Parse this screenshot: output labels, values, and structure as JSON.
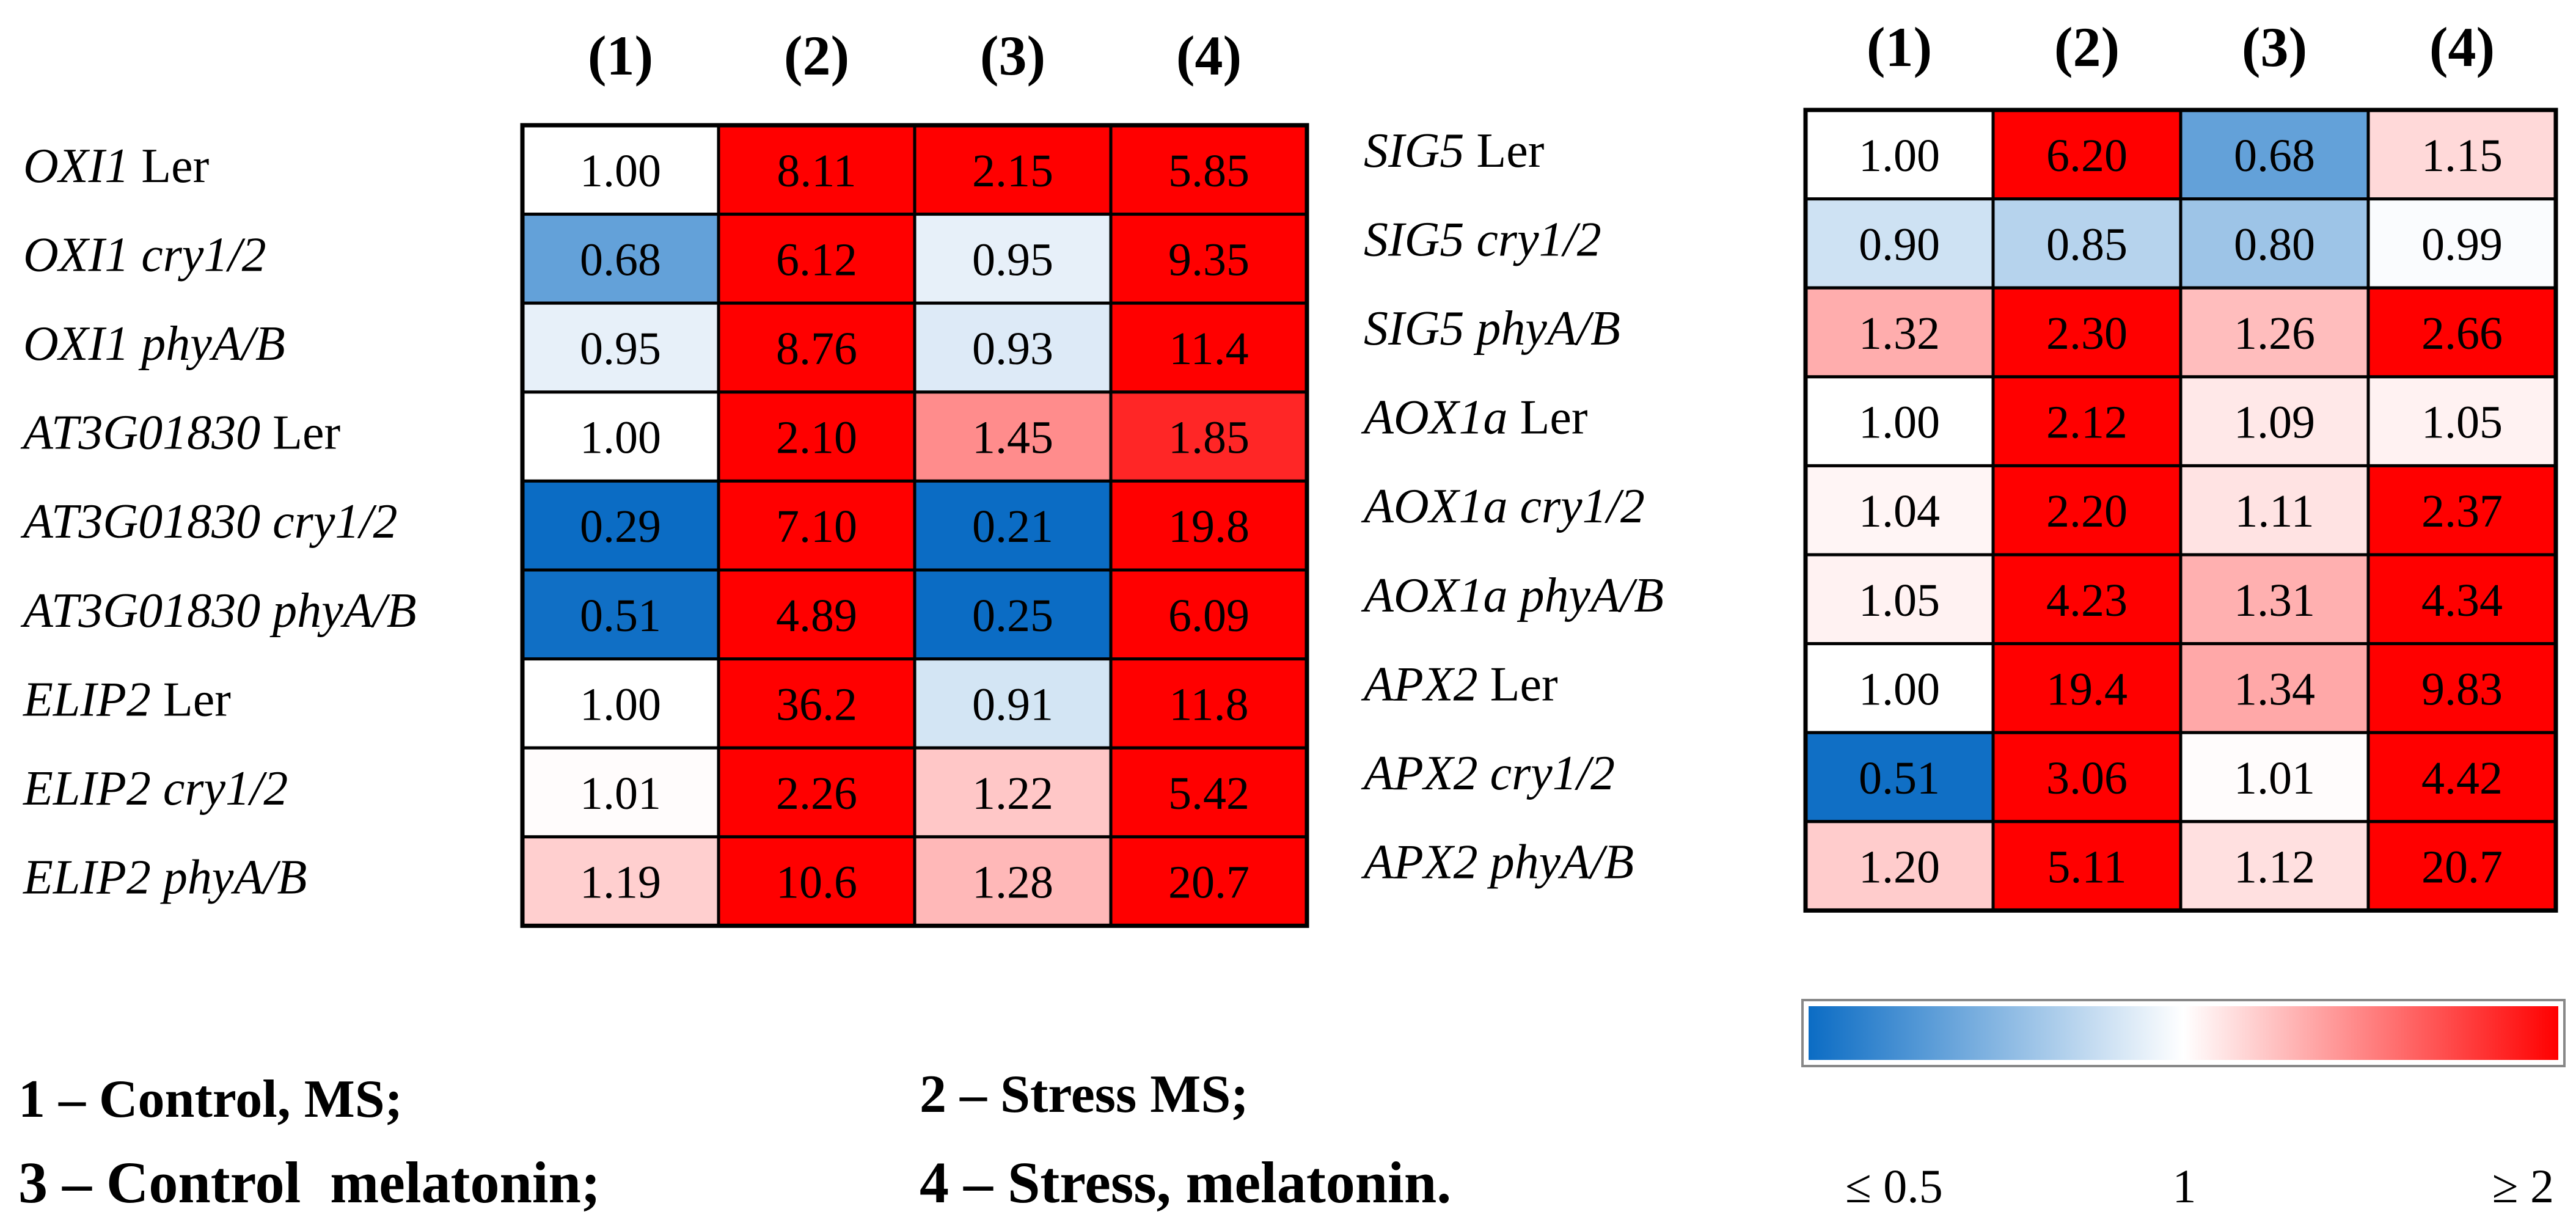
{
  "chart_data": [
    {
      "type": "heatmap",
      "name": "left-heatmap",
      "columns": [
        "(1)",
        "(2)",
        "(3)",
        "(4)"
      ],
      "rows": [
        {
          "gene": "OXI1",
          "line": "Ler",
          "values": [
            "1.00",
            "8.11",
            "2.15",
            "5.85"
          ]
        },
        {
          "gene": "OXI1",
          "line": "cry1/2",
          "values": [
            "0.68",
            "6.12",
            "0.95",
            "9.35"
          ]
        },
        {
          "gene": "OXI1",
          "line": "phyA/B",
          "values": [
            "0.95",
            "8.76",
            "0.93",
            "11.4"
          ]
        },
        {
          "gene": "AT3G01830",
          "line": "Ler",
          "values": [
            "1.00",
            "2.10",
            "1.45",
            "1.85"
          ]
        },
        {
          "gene": "AT3G01830",
          "line": "cry1/2",
          "values": [
            "0.29",
            "7.10",
            "0.21",
            "19.8"
          ]
        },
        {
          "gene": "AT3G01830",
          "line": "phyA/B",
          "values": [
            "0.51",
            "4.89",
            "0.25",
            "6.09"
          ]
        },
        {
          "gene": "ELIP2",
          "line": "Ler",
          "values": [
            "1.00",
            "36.2",
            "0.91",
            "11.8"
          ]
        },
        {
          "gene": "ELIP2",
          "line": "cry1/2",
          "values": [
            "1.01",
            "2.26",
            "1.22",
            "5.42"
          ]
        },
        {
          "gene": "ELIP2",
          "line": "phyA/B",
          "values": [
            "1.19",
            "10.6",
            "1.28",
            "20.7"
          ]
        }
      ]
    },
    {
      "type": "heatmap",
      "name": "right-heatmap",
      "columns": [
        "(1)",
        "(2)",
        "(3)",
        "(4)"
      ],
      "rows": [
        {
          "gene": "SIG5",
          "line": "Ler",
          "values": [
            "1.00",
            "6.20",
            "0.68",
            "1.15"
          ]
        },
        {
          "gene": "SIG5",
          "line": "cry1/2",
          "values": [
            "0.90",
            "0.85",
            "0.80",
            "0.99"
          ]
        },
        {
          "gene": "SIG5",
          "line": "phyA/B",
          "values": [
            "1.32",
            "2.30",
            "1.26",
            "2.66"
          ]
        },
        {
          "gene": "AOX1a",
          "line": "Ler",
          "values": [
            "1.00",
            "2.12",
            "1.09",
            "1.05"
          ]
        },
        {
          "gene": "AOX1a",
          "line": "cry1/2",
          "values": [
            "1.04",
            "2.20",
            "1.11",
            "2.37"
          ]
        },
        {
          "gene": "AOX1a",
          "line": "phyA/B",
          "values": [
            "1.05",
            "4.23",
            "1.31",
            "4.34"
          ]
        },
        {
          "gene": "APX2",
          "line": "Ler",
          "values": [
            "1.00",
            "19.4",
            "1.34",
            "9.83"
          ]
        },
        {
          "gene": "APX2",
          "line": "cry1/2",
          "values": [
            "0.51",
            "3.06",
            "1.01",
            "4.42"
          ]
        },
        {
          "gene": "APX2",
          "line": "phyA/B",
          "values": [
            "1.20",
            "5.11",
            "1.12",
            "20.7"
          ]
        }
      ]
    }
  ],
  "color_scale": {
    "min_label": "≤ 0.5",
    "mid_label": "1",
    "max_label": "≥ 2",
    "min_value": 0.5,
    "mid_value": 1,
    "max_value": 2,
    "low_color": "#0b6cc4",
    "mid_color": "#ffffff",
    "high_color": "#ff0000"
  },
  "legend": [
    {
      "num": "1",
      "dash": "–",
      "text": "Control, MS;"
    },
    {
      "num": "2",
      "dash": "–",
      "text": "Stress MS;"
    },
    {
      "num": "3",
      "dash": "–",
      "text": "Control  melatonin;"
    },
    {
      "num": "4",
      "dash": "–",
      "text": "Stress, melatonin."
    }
  ]
}
